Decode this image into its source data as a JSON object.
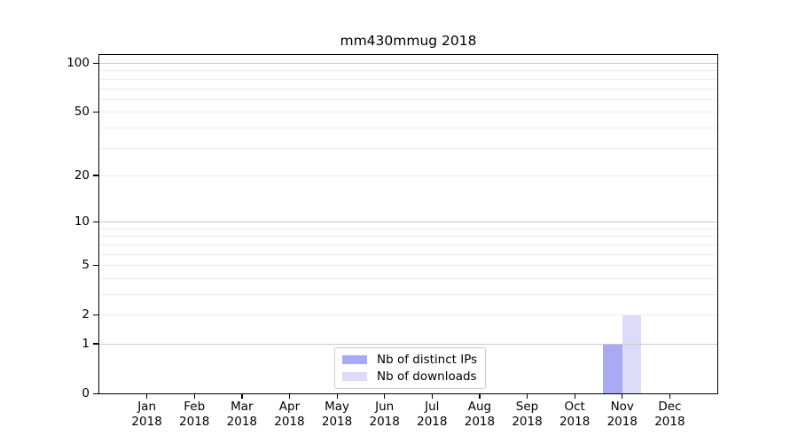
{
  "chart_data": {
    "type": "bar",
    "title": "mm430mmug 2018",
    "x_months": [
      "Jan",
      "Feb",
      "Mar",
      "Apr",
      "May",
      "Jun",
      "Jul",
      "Aug",
      "Sep",
      "Oct",
      "Nov",
      "Dec"
    ],
    "x_year": "2018",
    "series": [
      {
        "name": "Nb of distinct IPs",
        "color": "#a9a9f4",
        "values": [
          0,
          0,
          0,
          0,
          0,
          0,
          0,
          0,
          0,
          0,
          1,
          0
        ]
      },
      {
        "name": "Nb of downloads",
        "color": "#dcdcf8",
        "values": [
          0,
          0,
          0,
          0,
          0,
          0,
          0,
          0,
          0,
          0,
          2,
          0
        ]
      }
    ],
    "y_axis": {
      "scale": "log1p",
      "tick_values": [
        0,
        1,
        2,
        5,
        10,
        20,
        50,
        100
      ],
      "top_value": 112
    },
    "grid": {
      "major_values": [
        1,
        10,
        100
      ],
      "minor_values": [
        2,
        3,
        4,
        5,
        6,
        7,
        8,
        9,
        20,
        30,
        40,
        50,
        60,
        70,
        80,
        90
      ],
      "major_color": "#c8c8c8",
      "minor_color": "#ebebeb"
    },
    "legend_position": "lower center",
    "frame_color": "#000000",
    "xlabel": "",
    "ylabel": ""
  }
}
